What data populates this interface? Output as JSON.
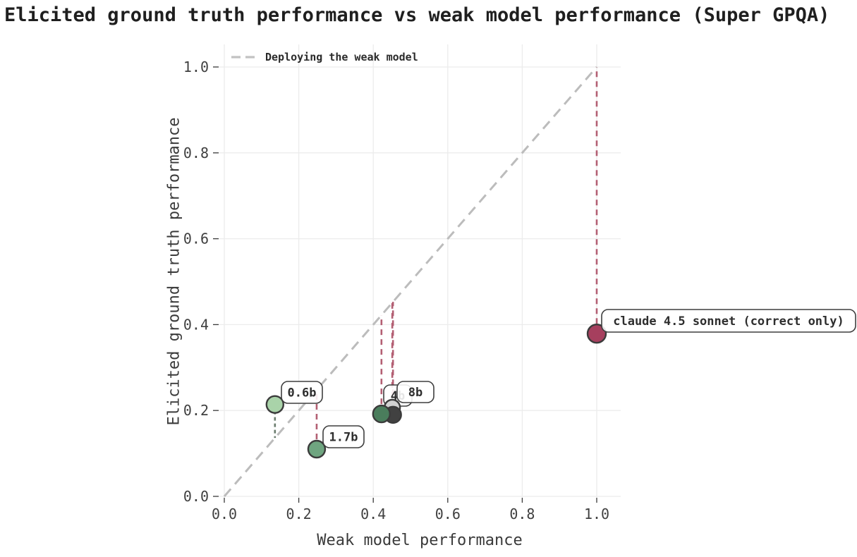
{
  "page": {
    "title": "Elicited ground truth performance vs weak model performance (Super GPQA)"
  },
  "chart_data": {
    "type": "scatter",
    "title": "Elicited ground truth performance vs weak model performance (Super GPQA)",
    "xlabel": "Weak model performance",
    "ylabel": "Elicited ground truth performance",
    "xlim": [
      -0.02,
      1.065
    ],
    "ylim": [
      -0.003,
      1.053
    ],
    "xticks": [
      0.0,
      0.2,
      0.4,
      0.6,
      0.8,
      1.0
    ],
    "yticks": [
      0.0,
      0.2,
      0.4,
      0.6,
      0.8,
      1.0
    ],
    "xtick_labels": [
      "0.0",
      "0.2",
      "0.4",
      "0.6",
      "0.8",
      "1.0"
    ],
    "ytick_labels": [
      "0.0",
      "0.2",
      "0.4",
      "0.6",
      "0.8",
      "1.0"
    ],
    "grid": true,
    "legend": {
      "position": "upper-left",
      "entries": [
        {
          "label": "Deploying the weak model",
          "style": "dashed-line",
          "color": "#c2c2c2"
        }
      ]
    },
    "reference_line": {
      "name": "Deploying the weak model",
      "equation": "y = x",
      "from": [
        0.0,
        0.0
      ],
      "to": [
        1.0,
        1.0
      ],
      "style": "dashed",
      "color": "#bcbcbc"
    },
    "points": [
      {
        "label": "0.6b",
        "x": 0.136,
        "y": 0.214,
        "color": "#a9d3a9"
      },
      {
        "label": "1.7b",
        "x": 0.248,
        "y": 0.11,
        "color": "#6fa580"
      },
      {
        "label": "4b",
        "x": 0.422,
        "y": 0.192,
        "color": "#4a7d5c"
      },
      {
        "label": "",
        "x": 0.451,
        "y": 0.207,
        "color": "#d2d2d2"
      },
      {
        "label": "8b",
        "x": 0.453,
        "y": 0.19,
        "color": "#414141"
      },
      {
        "label": "claude 4.5 sonnet (correct only)",
        "x": 1.0,
        "y": 0.379,
        "color": "#a63f5e"
      }
    ],
    "gap_lines": {
      "description": "vertical dashed line from each point to the y=x diagonal",
      "above_diagonal_color": "#6b7d6e",
      "below_diagonal_color": "#b35f73"
    },
    "colors": {
      "grid": "#ececec",
      "tick": "#3a3a3a",
      "tick_label": "#404040",
      "diagonal": "#bcbcbc",
      "gain_line": "#6b7d6e",
      "loss_line": "#b35f73",
      "point_stroke": "#3b3b3b",
      "label_box_fill": "rgba(255,255,255,0.88)",
      "label_box_stroke": "#3f3f3f",
      "label_text": "#2e2e2e",
      "title_text": "#1f1f1f"
    }
  }
}
